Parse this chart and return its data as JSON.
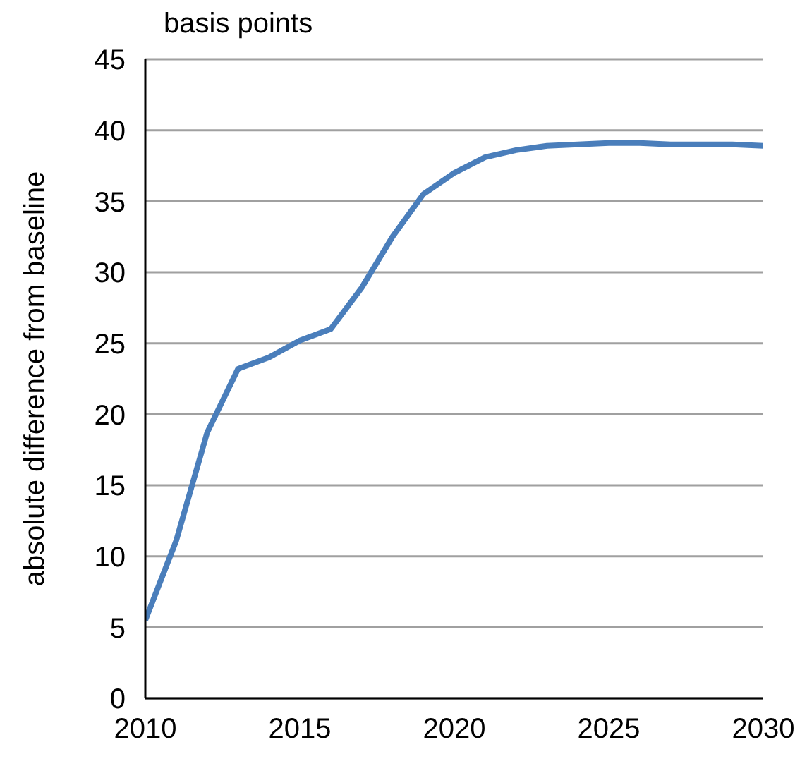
{
  "chart_data": {
    "type": "line",
    "subtitle": "basis points",
    "ylabel": "absolute difference from baseline",
    "x": [
      2010,
      2011,
      2012,
      2013,
      2014,
      2015,
      2016,
      2017,
      2018,
      2019,
      2020,
      2021,
      2022,
      2023,
      2024,
      2025,
      2026,
      2027,
      2028,
      2029,
      2030
    ],
    "series": [
      {
        "color": "#4a7ebb",
        "values": [
          5.5,
          11.1,
          18.7,
          23.2,
          24.0,
          25.2,
          26.0,
          28.9,
          32.5,
          35.5,
          37.0,
          38.1,
          38.6,
          38.9,
          39.0,
          39.1,
          39.1,
          39.0,
          39.0,
          39.0,
          38.9
        ]
      }
    ],
    "xlim": [
      2010,
      2030
    ],
    "xticks": [
      2010,
      2015,
      2020,
      2025,
      2030
    ],
    "ylim": [
      0,
      45
    ],
    "yticks": [
      0,
      5,
      10,
      15,
      20,
      25,
      30,
      35,
      40,
      45
    ],
    "grid": "y",
    "legend": false,
    "marker": "none",
    "line_style": "solid"
  }
}
